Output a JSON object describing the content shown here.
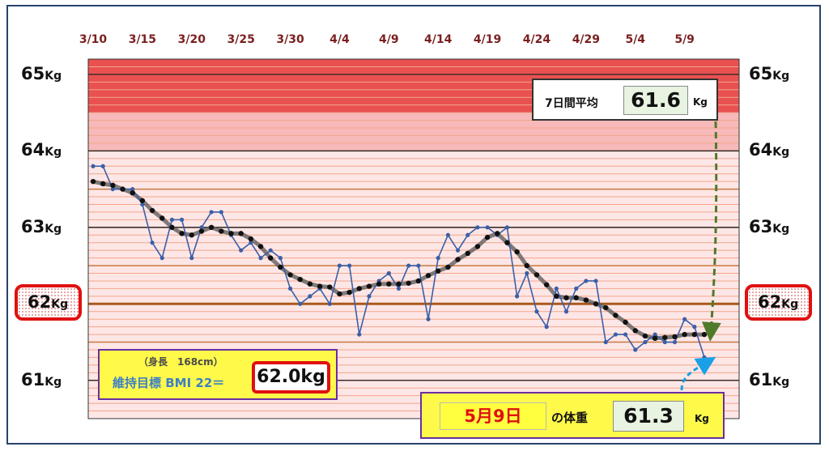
{
  "chart_data": {
    "type": "line",
    "x_tick_labels": [
      "3/10",
      "3/15",
      "3/20",
      "3/25",
      "3/30",
      "4/4",
      "4/9",
      "4/14",
      "4/19",
      "4/24",
      "4/29",
      "5/4",
      "5/9"
    ],
    "y_tick_labels": [
      {
        "value": 65,
        "number": "65",
        "unit": "Kg"
      },
      {
        "value": 64,
        "number": "64",
        "unit": "Kg"
      },
      {
        "value": 63,
        "number": "63",
        "unit": "Kg"
      },
      {
        "value": 62,
        "number": "62",
        "unit": "Kg"
      },
      {
        "value": 61,
        "number": "61",
        "unit": "Kg"
      }
    ],
    "ylim": [
      60.5,
      65.2
    ],
    "highlighted_y": 62,
    "series": [
      {
        "color": "#3a5fa8",
        "values": [
          63.8,
          63.8,
          63.5,
          63.5,
          63.5,
          63.3,
          62.8,
          62.6,
          63.1,
          63.1,
          62.6,
          63.0,
          63.2,
          63.2,
          62.9,
          62.7,
          62.8,
          62.6,
          62.7,
          62.6,
          62.2,
          62.0,
          62.1,
          62.2,
          62.0,
          62.5,
          62.5,
          61.6,
          62.1,
          62.3,
          62.4,
          62.2,
          62.5,
          62.5,
          61.8,
          62.6,
          62.9,
          62.7,
          62.9,
          63.0,
          63.0,
          62.9,
          63.0,
          62.1,
          62.4,
          61.9,
          61.7,
          62.2,
          61.9,
          62.2,
          62.3,
          62.3,
          61.5,
          61.6,
          61.6,
          61.4,
          61.5,
          61.6,
          61.5,
          61.5,
          61.8,
          61.7,
          61.3
        ]
      },
      {
        "color": "#111111",
        "values": [
          63.6,
          63.57,
          63.55,
          63.5,
          63.45,
          63.35,
          63.22,
          63.12,
          63.0,
          62.92,
          62.9,
          62.95,
          63.0,
          62.95,
          62.92,
          62.92,
          62.85,
          62.75,
          62.6,
          62.48,
          62.38,
          62.32,
          62.26,
          62.23,
          62.22,
          62.13,
          62.15,
          62.2,
          62.23,
          62.26,
          62.26,
          62.26,
          62.27,
          62.3,
          62.37,
          62.43,
          62.48,
          62.58,
          62.66,
          62.75,
          62.87,
          62.92,
          62.8,
          62.68,
          62.5,
          62.38,
          62.25,
          62.1,
          62.08,
          62.08,
          62.05,
          62.0,
          61.95,
          61.85,
          61.76,
          61.65,
          61.58,
          61.55,
          61.56,
          61.57,
          61.6,
          61.6,
          61.6
        ]
      }
    ]
  },
  "avg_box": {
    "label": "7日間平均",
    "value": "61.6",
    "unit": "Kg"
  },
  "bmi_box": {
    "height_text": "（身長　168cm）",
    "target_text": "維持目標 BMI 22＝",
    "value": "62.0kg"
  },
  "today_box": {
    "date": "5月9日",
    "label": "の体重",
    "value": "61.3",
    "unit": "Kg"
  },
  "colors": {
    "daily_line": "#3a5fa8",
    "average_line": "#111111",
    "target_line": "#a85a1c",
    "highlight": "#e01010"
  }
}
